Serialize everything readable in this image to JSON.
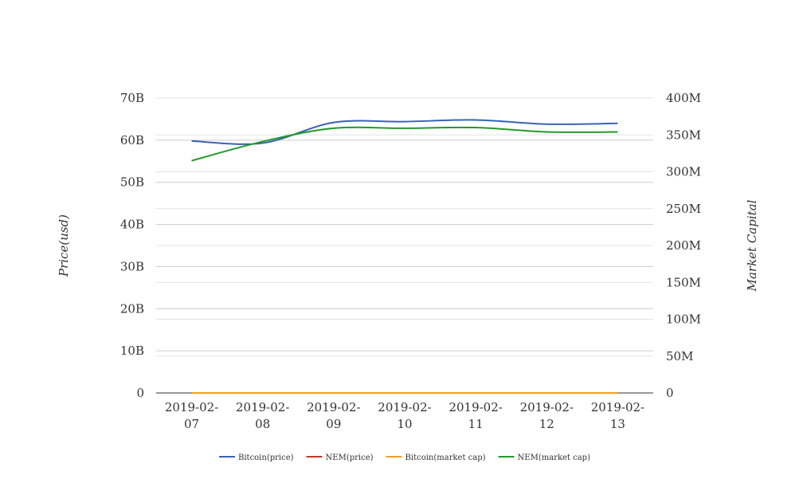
{
  "chart_data": {
    "type": "line",
    "categories": [
      "2019-02-07",
      "2019-02-08",
      "2019-02-09",
      "2019-02-10",
      "2019-02-11",
      "2019-02-12",
      "2019-02-13"
    ],
    "category_lines": [
      [
        "2019-02-",
        "07"
      ],
      [
        "2019-02-",
        "08"
      ],
      [
        "2019-02-",
        "09"
      ],
      [
        "2019-02-",
        "10"
      ],
      [
        "2019-02-",
        "11"
      ],
      [
        "2019-02-",
        "12"
      ],
      [
        "2019-02-",
        "13"
      ]
    ],
    "ylabel": "Price(usd)",
    "ylabel_right": "Market Capital",
    "y_left": {
      "ylim": [
        0,
        70000000000
      ],
      "ticks": [
        "0",
        "10B",
        "20B",
        "30B",
        "40B",
        "50B",
        "60B",
        "70B"
      ]
    },
    "y_right": {
      "ylim": [
        0,
        400000000
      ],
      "ticks": [
        "0",
        "50M",
        "100M",
        "150M",
        "200M",
        "250M",
        "300M",
        "350M",
        "400M"
      ]
    },
    "grid": true,
    "legend_position": "bottom",
    "series": [
      {
        "name": "Bitcoin(price)",
        "axis": "left",
        "color": "#3a62b5",
        "values": [
          59800000000,
          59300000000,
          64200000000,
          64400000000,
          64800000000,
          63800000000,
          64000000000
        ]
      },
      {
        "name": "NEM(price)",
        "axis": "left",
        "color": "#c0392b",
        "values": [
          0.0405,
          0.0425,
          0.0465,
          0.0462,
          0.0465,
          0.0455,
          0.0456
        ]
      },
      {
        "name": "Bitcoin(market cap)",
        "axis": "right",
        "color": "#f0a020",
        "values": [
          3600,
          3640,
          3980,
          3920,
          3980,
          3900,
          3920
        ]
      },
      {
        "name": "NEM(market cap)",
        "axis": "right",
        "color": "#229a2a",
        "values": [
          315000000,
          341000000,
          359000000,
          359000000,
          360000000,
          354000000,
          354000000
        ]
      }
    ]
  }
}
